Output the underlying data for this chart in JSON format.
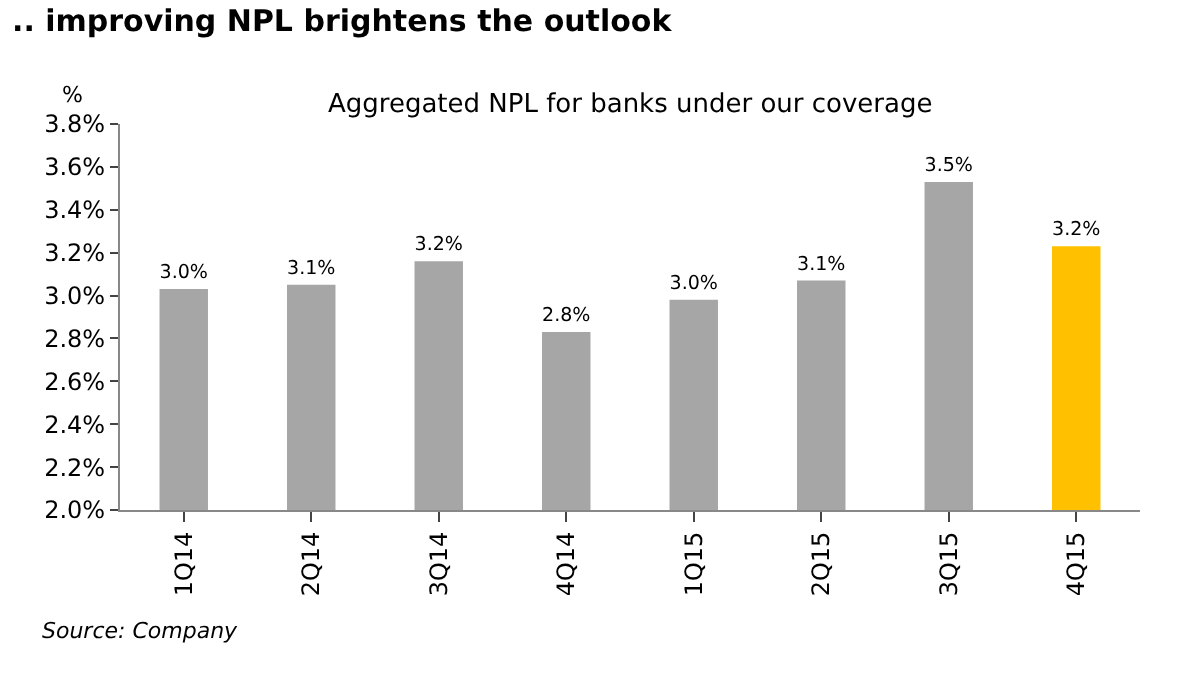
{
  "chart_data": {
    "type": "bar",
    "title": ".. improving NPL brightens the outlook",
    "subtitle": "Aggregated NPL for banks under our coverage",
    "ylabel": "%",
    "categories": [
      "1Q14",
      "2Q14",
      "3Q14",
      "4Q14",
      "1Q15",
      "2Q15",
      "3Q15",
      "4Q15"
    ],
    "values": [
      3.03,
      3.05,
      3.16,
      2.83,
      2.98,
      3.07,
      3.53,
      3.23
    ],
    "colors": [
      "#a6a6a6",
      "#a6a6a6",
      "#a6a6a6",
      "#a6a6a6",
      "#a6a6a6",
      "#a6a6a6",
      "#a6a6a6",
      "#ffc000"
    ],
    "value_labels": [
      "3.0%",
      "3.1%",
      "3.2%",
      "2.8%",
      "3.0%",
      "3.1%",
      "3.5%",
      "3.2%"
    ],
    "ylim": [
      2.0,
      3.8
    ],
    "yticks": [
      {
        "value": 2.0,
        "label": "2.0%"
      },
      {
        "value": 2.2,
        "label": "2.2%"
      },
      {
        "value": 2.4,
        "label": "2.4%"
      },
      {
        "value": 2.6,
        "label": "2.6%"
      },
      {
        "value": 2.8,
        "label": "2.8%"
      },
      {
        "value": 3.0,
        "label": "3.0%"
      },
      {
        "value": 3.2,
        "label": "3.2%"
      },
      {
        "value": 3.4,
        "label": "3.4%"
      },
      {
        "value": 3.6,
        "label": "3.6%"
      },
      {
        "value": 3.8,
        "label": "3.8%"
      }
    ],
    "annotations": [
      "Source: Company"
    ]
  }
}
